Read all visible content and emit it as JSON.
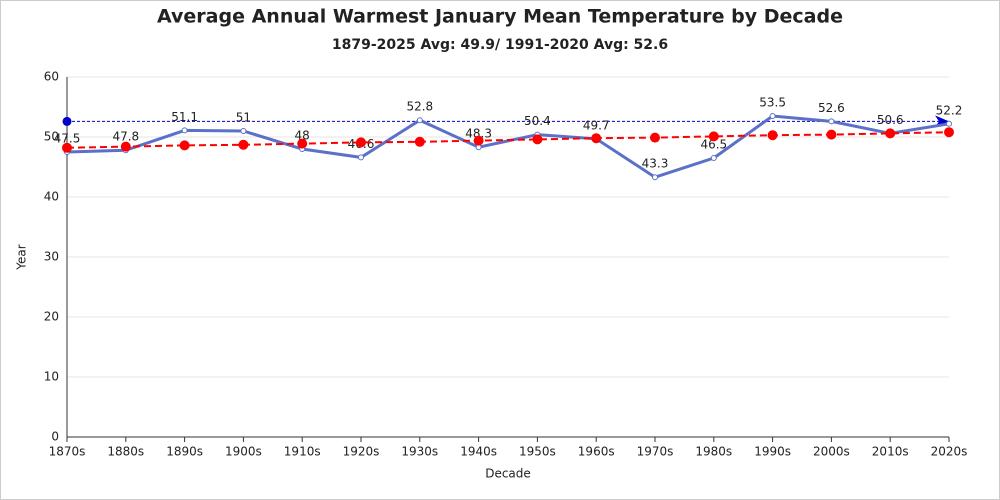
{
  "chart_data": {
    "type": "line",
    "title": "Average Annual Warmest January Mean Temperature by Decade",
    "subtitle": "1879-2025 Avg: 49.9/ 1991-2020 Avg: 52.6",
    "x_label": "Decade",
    "y_label": "Year",
    "categories": [
      "1870s",
      "1880s",
      "1890s",
      "1900s",
      "1910s",
      "1920s",
      "1930s",
      "1940s",
      "1950s",
      "1960s",
      "1970s",
      "1980s",
      "1990s",
      "2000s",
      "2010s",
      "2020s"
    ],
    "series": [
      {
        "color": "#5b70c8",
        "values": [
          47.5,
          47.8,
          51.1,
          51,
          48,
          46.6,
          52.8,
          48.3,
          50.4,
          49.7,
          43.3,
          46.5,
          53.5,
          52.6,
          50.6,
          52.2
        ],
        "data_labels": true
      },
      {
        "color": "#ff0000",
        "dashed": true,
        "values": [
          48.2,
          48.4,
          48.6,
          48.7,
          48.9,
          49.1,
          49.2,
          49.4,
          49.6,
          49.8,
          49.9,
          50.1,
          50.3,
          50.4,
          50.6,
          50.8
        ]
      }
    ],
    "reference_line": {
      "value": 52.6,
      "color": "#0000cc"
    },
    "ylim": [
      0,
      60
    ],
    "yticks": [
      0,
      10,
      20,
      30,
      40,
      50,
      60
    ],
    "grid": true
  }
}
